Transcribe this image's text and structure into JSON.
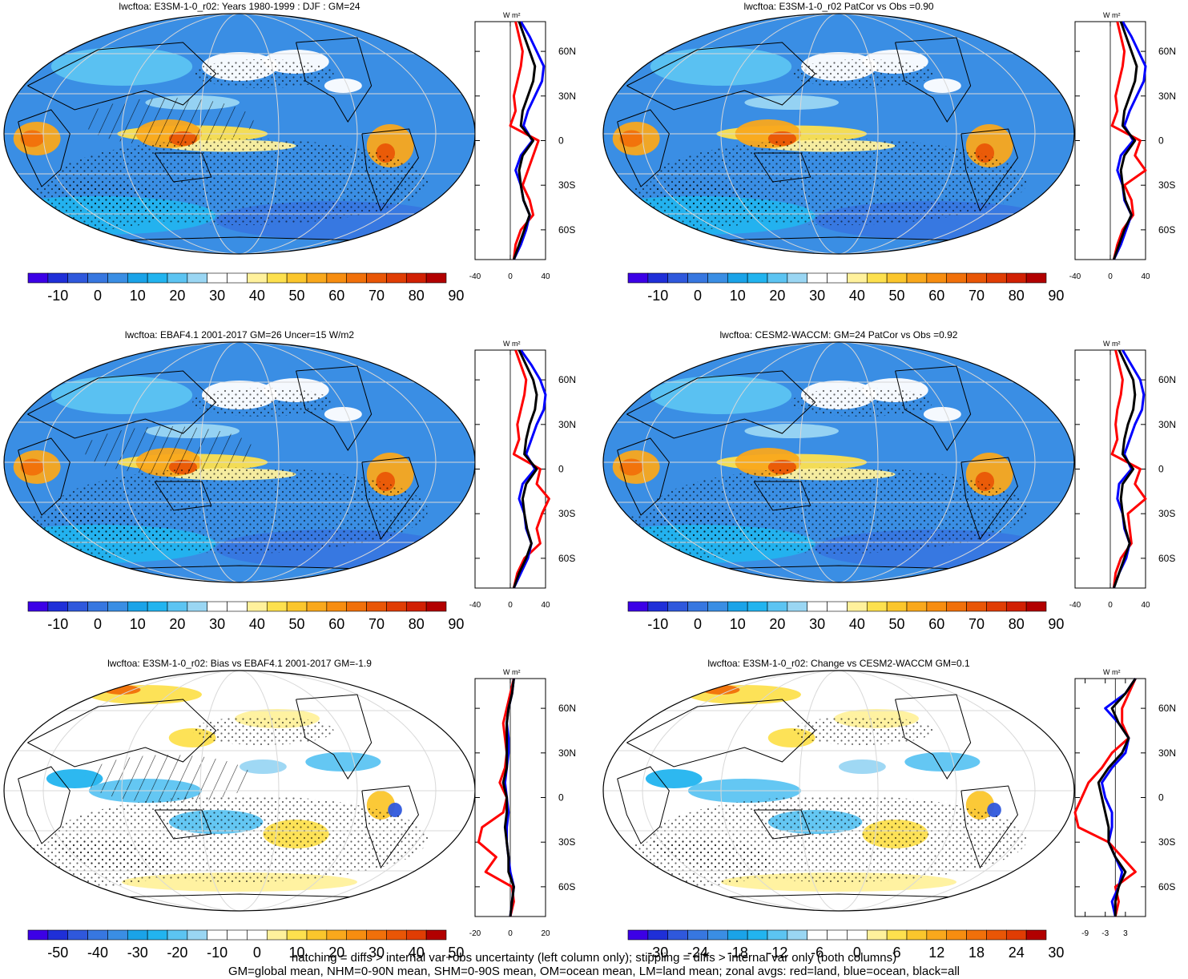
{
  "colors": {
    "land": "#ff0000",
    "ocean": "#0000ff",
    "all": "#000000"
  },
  "chart_data": [
    {
      "type": "heatmap",
      "title": "lwcftoa: E3SM-1-0_r02: Years 1980-1999 : DJF : GM=24",
      "colorbar": {
        "labels": [
          "-10",
          "0",
          "10",
          "20",
          "30",
          "40",
          "50",
          "60",
          "70",
          "80",
          "90"
        ],
        "palette": "full"
      },
      "zonal": {
        "units": "W m²",
        "xticks": [
          "-40",
          "0",
          "40"
        ],
        "xlim": [
          -40,
          40
        ],
        "yticks": [
          "60N",
          "30N",
          "0",
          "30S",
          "60S"
        ],
        "ylim": [
          -80,
          80
        ],
        "series": [
          {
            "key": "ocean",
            "lat": [
              80,
              70,
              60,
              50,
              40,
              30,
              20,
              10,
              0,
              -10,
              -20,
              -30,
              -40,
              -50,
              -60,
              -70,
              -80
            ],
            "values": [
              12,
              22,
              30,
              38,
              36,
              28,
              20,
              15,
              25,
              12,
              6,
              12,
              15,
              22,
              18,
              12,
              4
            ]
          },
          {
            "key": "land",
            "lat": [
              80,
              70,
              60,
              50,
              40,
              30,
              20,
              10,
              0,
              -10,
              -20,
              -30,
              -40,
              -50,
              -60,
              -70,
              -80
            ],
            "values": [
              6,
              10,
              14,
              12,
              8,
              4,
              6,
              0,
              32,
              26,
              20,
              14,
              22,
              26,
              12,
              6,
              4
            ]
          },
          {
            "key": "all",
            "lat": [
              80,
              70,
              60,
              50,
              40,
              30,
              20,
              10,
              0,
              -10,
              -20,
              -30,
              -40,
              -50,
              -60,
              -70,
              -80
            ],
            "values": [
              10,
              16,
              22,
              28,
              26,
              20,
              14,
              12,
              26,
              14,
              10,
              12,
              15,
              22,
              16,
              10,
              4
            ]
          }
        ]
      }
    },
    {
      "type": "heatmap",
      "title": "lwcftoa: E3SM-1-0_r02 PatCor vs Obs =0.90",
      "colorbar": {
        "labels": [
          "-10",
          "0",
          "10",
          "20",
          "30",
          "40",
          "50",
          "60",
          "70",
          "80",
          "90"
        ],
        "palette": "full"
      },
      "zonal": {
        "units": "W m²",
        "xticks": [
          "-40",
          "0",
          "40"
        ],
        "xlim": [
          -40,
          40
        ],
        "yticks": [
          "60N",
          "30N",
          "0",
          "30S",
          "60S"
        ],
        "ylim": [
          -80,
          80
        ],
        "series": [
          {
            "key": "ocean",
            "lat": [
              80,
              70,
              60,
              50,
              40,
              30,
              20,
              10,
              0,
              -10,
              -20,
              -30,
              -40,
              -50,
              -60,
              -70,
              -80
            ],
            "values": [
              14,
              24,
              32,
              40,
              38,
              30,
              22,
              16,
              26,
              12,
              8,
              14,
              16,
              24,
              18,
              12,
              4
            ]
          },
          {
            "key": "land",
            "lat": [
              80,
              70,
              60,
              50,
              40,
              30,
              20,
              10,
              0,
              -10,
              -20,
              -30,
              -40,
              -50,
              -60,
              -70,
              -80
            ],
            "values": [
              8,
              12,
              16,
              14,
              10,
              6,
              8,
              2,
              34,
              28,
              40,
              16,
              24,
              26,
              14,
              8,
              4
            ]
          },
          {
            "key": "all",
            "lat": [
              80,
              70,
              60,
              50,
              40,
              30,
              20,
              10,
              0,
              -10,
              -20,
              -30,
              -40,
              -50,
              -60,
              -70,
              -80
            ],
            "values": [
              12,
              18,
              24,
              30,
              28,
              22,
              16,
              14,
              28,
              16,
              12,
              14,
              17,
              24,
              16,
              10,
              4
            ]
          }
        ]
      }
    },
    {
      "type": "heatmap",
      "title": "lwcftoa: EBAF4.1 2001-2017 GM=26 Uncer=15 W/m2",
      "colorbar": {
        "labels": [
          "-10",
          "0",
          "10",
          "20",
          "30",
          "40",
          "50",
          "60",
          "70",
          "80",
          "90"
        ],
        "palette": "full"
      },
      "zonal": {
        "units": "W m²",
        "xticks": [
          "-40",
          "0",
          "40"
        ],
        "xlim": [
          -40,
          40
        ],
        "yticks": [
          "60N",
          "30N",
          "0",
          "30S",
          "60S"
        ],
        "ylim": [
          -80,
          80
        ],
        "series": [
          {
            "key": "ocean",
            "lat": [
              80,
              70,
              60,
              50,
              40,
              30,
              20,
              10,
              0,
              -10,
              -20,
              -30,
              -40,
              -50,
              -60,
              -70,
              -80
            ],
            "values": [
              12,
              24,
              34,
              40,
              38,
              30,
              24,
              18,
              28,
              14,
              10,
              16,
              18,
              24,
              20,
              12,
              4
            ]
          },
          {
            "key": "land",
            "lat": [
              80,
              70,
              60,
              50,
              40,
              30,
              20,
              10,
              0,
              -10,
              -20,
              -30,
              -40,
              -50,
              -60,
              -70,
              -80
            ],
            "values": [
              6,
              12,
              18,
              16,
              12,
              8,
              10,
              4,
              34,
              30,
              44,
              36,
              30,
              34,
              16,
              8,
              4
            ]
          },
          {
            "key": "all",
            "lat": [
              80,
              70,
              60,
              50,
              40,
              30,
              20,
              10,
              0,
              -10,
              -20,
              -30,
              -40,
              -50,
              -60,
              -70,
              -80
            ],
            "values": [
              10,
              18,
              26,
              30,
              28,
              22,
              18,
              16,
              30,
              18,
              14,
              16,
              19,
              24,
              18,
              10,
              4
            ]
          }
        ]
      }
    },
    {
      "type": "heatmap",
      "title": "lwcftoa: CESM2-WACCM: GM=24 PatCor vs Obs =0.92",
      "colorbar": {
        "labels": [
          "-10",
          "0",
          "10",
          "20",
          "30",
          "40",
          "50",
          "60",
          "70",
          "80",
          "90"
        ],
        "palette": "full"
      },
      "zonal": {
        "units": "W m²",
        "xticks": [
          "-40",
          "0",
          "40"
        ],
        "xlim": [
          -40,
          40
        ],
        "yticks": [
          "60N",
          "30N",
          "0",
          "30S",
          "60S"
        ],
        "ylim": [
          -80,
          80
        ],
        "series": [
          {
            "key": "ocean",
            "lat": [
              80,
              70,
              60,
              50,
              40,
              30,
              20,
              10,
              0,
              -10,
              -20,
              -30,
              -40,
              -50,
              -60,
              -70,
              -80
            ],
            "values": [
              14,
              24,
              34,
              38,
              36,
              28,
              22,
              16,
              24,
              10,
              8,
              14,
              16,
              22,
              18,
              10,
              4
            ]
          },
          {
            "key": "land",
            "lat": [
              80,
              70,
              60,
              50,
              40,
              30,
              20,
              10,
              0,
              -10,
              -20,
              -30,
              -40,
              -50,
              -60,
              -70,
              -80
            ],
            "values": [
              6,
              10,
              14,
              12,
              8,
              6,
              8,
              2,
              34,
              28,
              40,
              20,
              22,
              24,
              12,
              6,
              4
            ]
          },
          {
            "key": "all",
            "lat": [
              80,
              70,
              60,
              50,
              40,
              30,
              20,
              10,
              0,
              -10,
              -20,
              -30,
              -40,
              -50,
              -60,
              -70,
              -80
            ],
            "values": [
              10,
              18,
              26,
              28,
              26,
              20,
              16,
              14,
              26,
              14,
              12,
              14,
              17,
              22,
              16,
              10,
              4
            ]
          }
        ]
      }
    },
    {
      "type": "heatmap",
      "title": "lwcftoa: E3SM-1-0_r02: Bias vs EBAF4.1 2001-2017 GM=-1.9",
      "colorbar": {
        "labels": [
          "-50",
          "-40",
          "-30",
          "-20",
          "-10",
          "0",
          "10",
          "20",
          "30",
          "40",
          "50"
        ],
        "palette": "diff"
      },
      "zonal": {
        "units": "W m²",
        "xticks": [
          "-20",
          "0",
          "20"
        ],
        "xlim": [
          -20,
          20
        ],
        "yticks": [
          "60N",
          "30N",
          "0",
          "30S",
          "60S"
        ],
        "ylim": [
          -80,
          80
        ],
        "series": [
          {
            "key": "ocean",
            "lat": [
              80,
              70,
              60,
              50,
              40,
              30,
              20,
              10,
              0,
              -10,
              -20,
              -30,
              -40,
              -50,
              -60,
              -70,
              -80
            ],
            "values": [
              2,
              1,
              -1,
              -2,
              -1,
              -1,
              -2,
              -3,
              -2,
              -1,
              -2,
              -2,
              -1,
              0,
              2,
              1,
              0
            ]
          },
          {
            "key": "land",
            "lat": [
              80,
              70,
              60,
              50,
              40,
              30,
              20,
              10,
              0,
              -10,
              -20,
              -30,
              -40,
              -50,
              -60,
              -70,
              -80
            ],
            "values": [
              2,
              0,
              -2,
              -4,
              -3,
              -2,
              -3,
              -6,
              -2,
              -4,
              -16,
              -18,
              -8,
              -14,
              1,
              2,
              0
            ]
          },
          {
            "key": "all",
            "lat": [
              80,
              70,
              60,
              50,
              40,
              30,
              20,
              10,
              0,
              -10,
              -20,
              -30,
              -40,
              -50,
              -60,
              -70,
              -80
            ],
            "values": [
              2,
              1,
              -1,
              -2,
              -2,
              -2,
              -2,
              -4,
              -2,
              -2,
              -3,
              -2,
              -1,
              -1,
              2,
              1,
              0
            ]
          }
        ]
      }
    },
    {
      "type": "heatmap",
      "title": "lwcftoa: E3SM-1-0_r02: Change vs CESM2-WACCM GM=0.1",
      "colorbar": {
        "labels": [
          "-30",
          "-24",
          "-18",
          "-12",
          "-6",
          "0",
          "6",
          "12",
          "18",
          "24",
          "30"
        ],
        "palette": "diff"
      },
      "zonal": {
        "units": "W m²",
        "xticks": [
          "-9",
          "-3",
          "3"
        ],
        "xlim": [
          -12,
          9
        ],
        "yticks": [
          "60N",
          "30N",
          "0",
          "30S",
          "60S"
        ],
        "ylim": [
          -80,
          80
        ],
        "series": [
          {
            "key": "ocean",
            "lat": [
              80,
              70,
              60,
              50,
              40,
              30,
              20,
              10,
              0,
              -10,
              -20,
              -30,
              -40,
              -50,
              -60,
              -70,
              -80
            ],
            "values": [
              6,
              3,
              -3,
              1,
              4,
              3,
              -1,
              -4,
              -3,
              -1,
              -1,
              -2,
              0,
              2,
              1,
              -1,
              0
            ]
          },
          {
            "key": "land",
            "lat": [
              80,
              70,
              60,
              50,
              40,
              30,
              20,
              10,
              0,
              -10,
              -20,
              -30,
              -40,
              -50,
              -60,
              -70,
              -80
            ],
            "values": [
              6,
              4,
              2,
              2,
              4,
              -1,
              -4,
              -8,
              -10,
              -12,
              -11,
              -2,
              2,
              6,
              0,
              1,
              0
            ]
          },
          {
            "key": "all",
            "lat": [
              80,
              70,
              60,
              50,
              40,
              30,
              20,
              10,
              0,
              -10,
              -20,
              -30,
              -40,
              -50,
              -60,
              -70,
              -80
            ],
            "values": [
              6,
              3,
              -1,
              1,
              4,
              2,
              -2,
              -5,
              -4,
              -3,
              -2,
              -2,
              0,
              3,
              1,
              0,
              0
            ]
          }
        ]
      }
    }
  ],
  "footer": {
    "line1": "hatching = diffs > internal var+obs uncertainty (left column only); stippling = diffs > internal var only (both columns)",
    "line2": "GM=global mean, NHM=0-90N mean, SHM=0-90S mean, OM=ocean mean, LM=land mean; zonal avgs: red=land, blue=ocean, black=all"
  }
}
